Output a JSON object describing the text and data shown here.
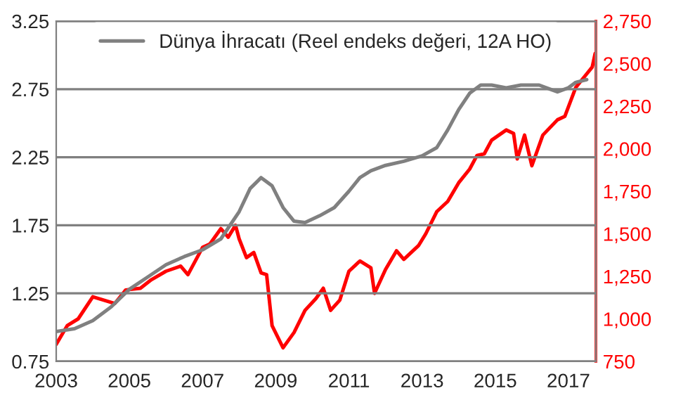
{
  "chart_data": {
    "type": "line",
    "xlim": [
      2003,
      2017.75
    ],
    "xticks": [
      2003,
      2005,
      2007,
      2009,
      2011,
      2013,
      2015,
      2017
    ],
    "ylim": [
      0.75,
      3.25
    ],
    "yticks": [
      {
        "value": 0.75,
        "label": "0.75"
      },
      {
        "value": 1.25,
        "label": "1.25"
      },
      {
        "value": 1.75,
        "label": "1.75"
      },
      {
        "value": 2.25,
        "label": "2.25"
      },
      {
        "value": 2.75,
        "label": "2.75"
      },
      {
        "value": 3.25,
        "label": "3.25"
      }
    ],
    "y2lim": [
      750,
      2750
    ],
    "y2ticks": [
      {
        "value": 750,
        "label": "750"
      },
      {
        "value": 1000,
        "label": "1,000"
      },
      {
        "value": 1250,
        "label": "1,250"
      },
      {
        "value": 1500,
        "label": "1,500"
      },
      {
        "value": 1750,
        "label": "1,750"
      },
      {
        "value": 2000,
        "label": "2,000"
      },
      {
        "value": 2250,
        "label": "2,250"
      },
      {
        "value": 2500,
        "label": "2,500"
      },
      {
        "value": 2750,
        "label": "2,750"
      }
    ],
    "grid": "y",
    "legend": "top",
    "series": [
      {
        "name": "Dünya İhracatı (Reel endeks değeri, 12A HO)",
        "color": "#808080",
        "x": [
          2003,
          2003.5,
          2004,
          2004.5,
          2005,
          2005.5,
          2006,
          2006.5,
          2007,
          2007.5,
          2008,
          2008.3,
          2008.6,
          2008.9,
          2009.2,
          2009.5,
          2009.8,
          2010.2,
          2010.6,
          2011,
          2011.3,
          2011.6,
          2012,
          2012.5,
          2013,
          2013.4,
          2013.7,
          2014,
          2014.3,
          2014.6,
          2014.9,
          2015.3,
          2015.7,
          2016.2,
          2016.5,
          2016.7,
          2017,
          2017.2,
          2017.5
        ],
        "values": [
          0.97,
          0.99,
          1.05,
          1.15,
          1.28,
          1.37,
          1.46,
          1.52,
          1.57,
          1.65,
          1.85,
          2.02,
          2.1,
          2.04,
          1.88,
          1.78,
          1.77,
          1.82,
          1.88,
          2.0,
          2.1,
          2.15,
          2.19,
          2.22,
          2.26,
          2.32,
          2.45,
          2.6,
          2.72,
          2.78,
          2.78,
          2.76,
          2.78,
          2.78,
          2.75,
          2.73,
          2.76,
          2.8,
          2.82
        ]
      },
      {
        "color": "#ff0000",
        "axis": "y2",
        "x": [
          2003.0,
          2003.3,
          2003.6,
          2004.0,
          2004.3,
          2004.6,
          2004.9,
          2005.3,
          2005.6,
          2006.0,
          2006.4,
          2006.6,
          2007.0,
          2007.2,
          2007.5,
          2007.7,
          2007.9,
          2008.0,
          2008.2,
          2008.4,
          2008.6,
          2008.75,
          2008.9,
          2009.2,
          2009.5,
          2009.8,
          2010.1,
          2010.3,
          2010.5,
          2010.75,
          2011.0,
          2011.3,
          2011.6,
          2011.7,
          2012.0,
          2012.3,
          2012.5,
          2012.9,
          2013.1,
          2013.4,
          2013.7,
          2014.0,
          2014.3,
          2014.5,
          2014.7,
          2014.9,
          2015.3,
          2015.5,
          2015.6,
          2015.8,
          2016.0,
          2016.3,
          2016.7,
          2016.9,
          2017.2,
          2017.5,
          2017.65,
          2017.73
        ],
        "values": [
          850,
          960,
          1000,
          1130,
          1110,
          1090,
          1170,
          1180,
          1230,
          1280,
          1310,
          1260,
          1420,
          1440,
          1530,
          1480,
          1550,
          1470,
          1360,
          1390,
          1270,
          1260,
          960,
          830,
          920,
          1050,
          1120,
          1180,
          1050,
          1110,
          1280,
          1340,
          1300,
          1150,
          1290,
          1400,
          1350,
          1430,
          1500,
          1630,
          1690,
          1800,
          1880,
          1960,
          1970,
          2050,
          2110,
          2090,
          1940,
          2080,
          1900,
          2080,
          2170,
          2190,
          2360,
          2440,
          2480,
          2560
        ]
      }
    ]
  }
}
